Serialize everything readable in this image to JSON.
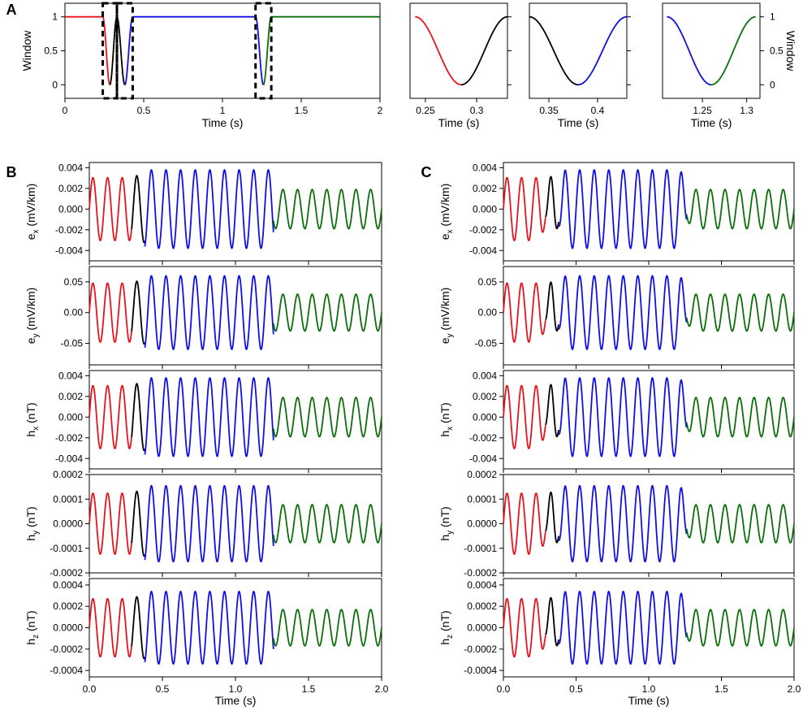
{
  "colors": {
    "red": "#e8141b",
    "black": "#000000",
    "blue": "#1010e6",
    "green": "#0b6e0b"
  },
  "chart_data": [
    {
      "id": "A-window",
      "panel_label": "A",
      "type": "line",
      "xlabel": "Time (s)",
      "ylabel": "Window",
      "xlim": [
        0,
        2
      ],
      "ylim": [
        -0.2,
        1.2
      ],
      "xticks": [
        0,
        0.5,
        1,
        1.5,
        2
      ],
      "xticklabels": [
        "0",
        "0.5",
        "1",
        "1.5",
        "2"
      ],
      "yticks": [
        0,
        0.5,
        1
      ],
      "yticklabels": [
        "0",
        "0.5",
        "1"
      ],
      "taper_windows": [
        {
          "start": 0.24,
          "end": 0.33,
          "first": "red",
          "second": "black"
        },
        {
          "start": 0.33,
          "end": 0.43,
          "first": "black",
          "second": "blue"
        },
        {
          "start": 1.21,
          "end": 1.31,
          "first": "blue",
          "second": "green"
        }
      ],
      "segments": [
        {
          "color": "red",
          "from": 0,
          "to": 0.24
        },
        {
          "color": "blue",
          "from": 0.43,
          "to": 1.21
        },
        {
          "color": "green",
          "from": 1.31,
          "to": 2
        }
      ],
      "highlight_boxes": [
        [
          0.24,
          0.33
        ],
        [
          0.33,
          0.43
        ],
        [
          1.21,
          1.31
        ]
      ]
    },
    {
      "id": "A-zoom1",
      "type": "line",
      "xlabel": "Time (s)",
      "xlim": [
        0.235,
        0.33
      ],
      "ylim": [
        -0.2,
        1.2
      ],
      "xticks": [
        0.25,
        0.3
      ],
      "xticklabels": [
        "0.25",
        "0.3"
      ],
      "window": {
        "start": 0.24,
        "end": 0.33,
        "first": "red",
        "second": "black"
      }
    },
    {
      "id": "A-zoom2",
      "type": "line",
      "xlabel": "Time (s)",
      "xlim": [
        0.33,
        0.43
      ],
      "ylim": [
        -0.2,
        1.2
      ],
      "xticks": [
        0.35,
        0.4
      ],
      "xticklabels": [
        "0.35",
        "0.4"
      ],
      "window": {
        "start": 0.33,
        "end": 0.43,
        "first": "black",
        "second": "blue"
      }
    },
    {
      "id": "A-zoom3",
      "type": "line",
      "xlabel": "Time (s)",
      "ylabel": "Window",
      "xlim": [
        1.205,
        1.315
      ],
      "ylim": [
        -0.2,
        1.2
      ],
      "xticks": [
        1.25,
        1.3
      ],
      "xticklabels": [
        "1.25",
        "1.3"
      ],
      "yticks": [
        0,
        0.5,
        1
      ],
      "yticklabels": [
        "0",
        "0.5",
        "1"
      ],
      "window": {
        "start": 1.21,
        "end": 1.31,
        "first": "blue",
        "second": "green"
      }
    }
  ],
  "field_plots": {
    "xlim": [
      0,
      2
    ],
    "xticks": [
      0,
      0.5,
      1,
      1.5,
      2
    ],
    "xticklabels": [
      "0.0",
      "0.5",
      "1.0",
      "1.5",
      "2.0"
    ],
    "xlabel": "Time (s)",
    "columns": [
      {
        "label": "B",
        "mode": "cut"
      },
      {
        "label": "C",
        "mode": "tapered"
      }
    ],
    "segments": [
      {
        "color": "red",
        "from": 0,
        "to": 0.29,
        "rel_amplitude": 0.8,
        "freq_hz": 10
      },
      {
        "color": "black",
        "from": 0.29,
        "to": 0.38,
        "rel_amplitude": 0.85,
        "freq_hz": 10
      },
      {
        "color": "blue",
        "from": 0.38,
        "to": 1.26,
        "rel_amplitude": 1.0,
        "freq_hz": 10
      },
      {
        "color": "green",
        "from": 1.26,
        "to": 2,
        "rel_amplitude": 0.5,
        "freq_hz": 10
      }
    ],
    "channels": [
      {
        "id": "ex",
        "ylabel_main": "e",
        "ylabel_sub": "x",
        "ylabel_unit": " (mV/km)",
        "amplitude": 0.0038,
        "ylim": [
          -0.005,
          0.0045
        ],
        "yticks": [
          -0.004,
          -0.002,
          0,
          0.002,
          0.004
        ],
        "yticklabels": [
          "-0.004",
          "-0.002",
          "0.000",
          "0.002",
          "0.004"
        ]
      },
      {
        "id": "ey",
        "ylabel_main": "e",
        "ylabel_sub": "y",
        "ylabel_unit": " (mV/km)",
        "amplitude": 0.06,
        "ylim": [
          -0.085,
          0.075
        ],
        "yticks": [
          -0.05,
          0,
          0.05
        ],
        "yticklabels": [
          "-0.05",
          "0.00",
          "0.05"
        ]
      },
      {
        "id": "hx",
        "ylabel_main": "h",
        "ylabel_sub": "x",
        "ylabel_unit": " (nT)",
        "amplitude": 0.0038,
        "ylim": [
          -0.005,
          0.0045
        ],
        "yticks": [
          -0.004,
          -0.002,
          0,
          0.002,
          0.004
        ],
        "yticklabels": [
          "-0.004",
          "-0.002",
          "0.000",
          "0.002",
          "0.004"
        ]
      },
      {
        "id": "hy",
        "ylabel_main": "h",
        "ylabel_sub": "y",
        "ylabel_unit": " (nT)",
        "amplitude": 0.000155,
        "ylim": [
          -0.0002,
          0.0002
        ],
        "yticks": [
          -0.0002,
          -0.0001,
          0,
          0.0001,
          0.0002
        ],
        "yticklabels": [
          "-0.0002",
          "-0.0001",
          "0.0000",
          "0.0001",
          "0.0002"
        ]
      },
      {
        "id": "hz",
        "ylabel_main": "h",
        "ylabel_sub": "z",
        "ylabel_unit": " (nT)",
        "amplitude": 0.00034,
        "ylim": [
          -0.00046,
          0.00046
        ],
        "yticks": [
          -0.0004,
          -0.0002,
          0,
          0.0002,
          0.0004
        ],
        "yticklabels": [
          "-0.0004",
          "-0.0002",
          "0.0000",
          "0.0002",
          "0.0004"
        ]
      }
    ]
  }
}
